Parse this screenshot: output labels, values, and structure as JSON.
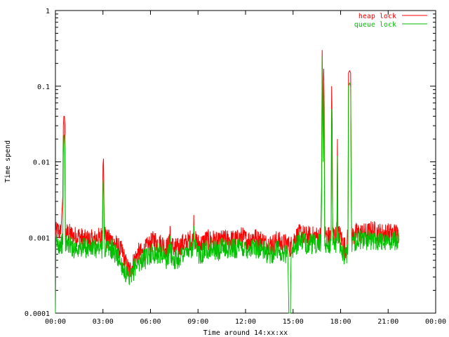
{
  "chart_data": {
    "type": "line",
    "title": "",
    "xlabel": "Time around 14:xx:xx",
    "ylabel": "Time spend",
    "x_unit": "minutes:seconds",
    "xlim": [
      0,
      1440
    ],
    "ylim": [
      0.0001,
      1
    ],
    "y_scale": "log",
    "grid": false,
    "legend_position": "top-right",
    "x_ticks": [
      {
        "value": 0,
        "label": "00:00"
      },
      {
        "value": 180,
        "label": "03:00"
      },
      {
        "value": 360,
        "label": "06:00"
      },
      {
        "value": 540,
        "label": "09:00"
      },
      {
        "value": 720,
        "label": "12:00"
      },
      {
        "value": 900,
        "label": "15:00"
      },
      {
        "value": 1080,
        "label": "18:00"
      },
      {
        "value": 1260,
        "label": "21:00"
      },
      {
        "value": 1440,
        "label": "00:00"
      }
    ],
    "y_ticks": [
      {
        "value": 0.0001,
        "label": "0.0001"
      },
      {
        "value": 0.001,
        "label": "0.001"
      },
      {
        "value": 0.01,
        "label": "0.01"
      },
      {
        "value": 0.1,
        "label": "0.1"
      },
      {
        "value": 1,
        "label": "1"
      }
    ],
    "series": [
      {
        "name": "heap lock",
        "color": "#ff0000",
        "points": [
          [
            0,
            0.0011
          ],
          [
            10,
            0.0012
          ],
          [
            20,
            0.0011
          ],
          [
            28,
            0.0035
          ],
          [
            30,
            0.03
          ],
          [
            32,
            0.04
          ],
          [
            34,
            0.04
          ],
          [
            36,
            0.03
          ],
          [
            38,
            0.0011
          ],
          [
            50,
            0.0011
          ],
          [
            70,
            0.001
          ],
          [
            90,
            0.001
          ],
          [
            110,
            0.0009
          ],
          [
            130,
            0.0009
          ],
          [
            150,
            0.0009
          ],
          [
            160,
            0.001
          ],
          [
            170,
            0.0009
          ],
          [
            178,
            0.0012
          ],
          [
            180,
            0.009
          ],
          [
            182,
            0.011
          ],
          [
            184,
            0.003
          ],
          [
            186,
            0.0012
          ],
          [
            195,
            0.0009
          ],
          [
            210,
            0.0009
          ],
          [
            225,
            0.0008
          ],
          [
            240,
            0.0007
          ],
          [
            255,
            0.0006
          ],
          [
            270,
            0.0004
          ],
          [
            280,
            0.00035
          ],
          [
            290,
            0.0004
          ],
          [
            300,
            0.0005
          ],
          [
            315,
            0.0006
          ],
          [
            330,
            0.0006
          ],
          [
            345,
            0.0007
          ],
          [
            360,
            0.0008
          ],
          [
            375,
            0.0009
          ],
          [
            390,
            0.0008
          ],
          [
            405,
            0.0008
          ],
          [
            420,
            0.0007
          ],
          [
            432,
            0.0008
          ],
          [
            434,
            0.0015
          ],
          [
            436,
            0.0008
          ],
          [
            450,
            0.0007
          ],
          [
            465,
            0.0007
          ],
          [
            480,
            0.0008
          ],
          [
            495,
            0.0008
          ],
          [
            510,
            0.0009
          ],
          [
            522,
            0.0009
          ],
          [
            524,
            0.0018
          ],
          [
            526,
            0.0009
          ],
          [
            540,
            0.0008
          ],
          [
            555,
            0.0008
          ],
          [
            570,
            0.0009
          ],
          [
            585,
            0.0009
          ],
          [
            600,
            0.0009
          ],
          [
            615,
            0.0008
          ],
          [
            630,
            0.0009
          ],
          [
            645,
            0.0009
          ],
          [
            660,
            0.0009
          ],
          [
            675,
            0.0009
          ],
          [
            690,
            0.0009
          ],
          [
            705,
            0.001
          ],
          [
            720,
            0.0009
          ],
          [
            735,
            0.0009
          ],
          [
            750,
            0.001
          ],
          [
            765,
            0.0009
          ],
          [
            780,
            0.0009
          ],
          [
            795,
            0.0008
          ],
          [
            810,
            0.0008
          ],
          [
            825,
            0.0008
          ],
          [
            840,
            0.0009
          ],
          [
            855,
            0.0008
          ],
          [
            870,
            0.0008
          ],
          [
            880,
            0.0008
          ],
          [
            890,
            0.0007
          ],
          [
            900,
            0.0009
          ],
          [
            915,
            0.001
          ],
          [
            930,
            0.0011
          ],
          [
            945,
            0.001
          ],
          [
            960,
            0.001
          ],
          [
            975,
            0.001
          ],
          [
            990,
            0.001
          ],
          [
            1000,
            0.001
          ],
          [
            1005,
            0.001
          ],
          [
            1008,
            0.005
          ],
          [
            1010,
            0.3
          ],
          [
            1012,
            0.12
          ],
          [
            1014,
            0.02
          ],
          [
            1016,
            0.17
          ],
          [
            1018,
            0.05
          ],
          [
            1020,
            0.0011
          ],
          [
            1030,
            0.001
          ],
          [
            1040,
            0.001
          ],
          [
            1044,
            0.0011
          ],
          [
            1046,
            0.1
          ],
          [
            1048,
            0.03
          ],
          [
            1050,
            0.0011
          ],
          [
            1060,
            0.001
          ],
          [
            1066,
            0.0012
          ],
          [
            1068,
            0.02
          ],
          [
            1070,
            0.0011
          ],
          [
            1080,
            0.001
          ],
          [
            1090,
            0.0008
          ],
          [
            1100,
            0.0007
          ],
          [
            1108,
            0.001
          ],
          [
            1110,
            0.15
          ],
          [
            1114,
            0.16
          ],
          [
            1118,
            0.15
          ],
          [
            1120,
            0.007
          ],
          [
            1122,
            0.001
          ],
          [
            1140,
            0.0011
          ],
          [
            1160,
            0.0011
          ],
          [
            1180,
            0.0011
          ],
          [
            1200,
            0.0012
          ],
          [
            1220,
            0.0011
          ],
          [
            1240,
            0.0011
          ],
          [
            1260,
            0.0011
          ],
          [
            1275,
            0.0011
          ],
          [
            1290,
            0.0011
          ],
          [
            1300,
            0.0011
          ]
        ]
      },
      {
        "name": "queue lock",
        "color": "#00c000",
        "points": [
          [
            0,
            0.0001
          ],
          [
            2,
            0.0008
          ],
          [
            10,
            0.0008
          ],
          [
            20,
            0.0008
          ],
          [
            28,
            0.0008
          ],
          [
            30,
            0.012
          ],
          [
            32,
            0.022
          ],
          [
            34,
            0.023
          ],
          [
            36,
            0.015
          ],
          [
            38,
            0.0008
          ],
          [
            50,
            0.0008
          ],
          [
            70,
            0.0007
          ],
          [
            90,
            0.0007
          ],
          [
            110,
            0.0007
          ],
          [
            130,
            0.0007
          ],
          [
            150,
            0.0007
          ],
          [
            160,
            0.0007
          ],
          [
            170,
            0.0007
          ],
          [
            178,
            0.0007
          ],
          [
            180,
            0.005
          ],
          [
            182,
            0.006
          ],
          [
            184,
            0.002
          ],
          [
            186,
            0.0007
          ],
          [
            195,
            0.0007
          ],
          [
            210,
            0.0007
          ],
          [
            225,
            0.0006
          ],
          [
            240,
            0.0005
          ],
          [
            255,
            0.0004
          ],
          [
            270,
            0.0003
          ],
          [
            280,
            0.00025
          ],
          [
            290,
            0.0003
          ],
          [
            300,
            0.0004
          ],
          [
            315,
            0.00045
          ],
          [
            330,
            0.0005
          ],
          [
            345,
            0.0005
          ],
          [
            360,
            0.0006
          ],
          [
            375,
            0.0006
          ],
          [
            390,
            0.0006
          ],
          [
            405,
            0.0006
          ],
          [
            420,
            0.0005
          ],
          [
            432,
            0.0006
          ],
          [
            434,
            0.0011
          ],
          [
            436,
            0.0006
          ],
          [
            450,
            0.0005
          ],
          [
            465,
            0.0005
          ],
          [
            480,
            0.0006
          ],
          [
            495,
            0.0006
          ],
          [
            510,
            0.0007
          ],
          [
            522,
            0.0007
          ],
          [
            524,
            0.0016
          ],
          [
            526,
            0.0007
          ],
          [
            540,
            0.0006
          ],
          [
            555,
            0.0006
          ],
          [
            570,
            0.0007
          ],
          [
            585,
            0.0007
          ],
          [
            600,
            0.0007
          ],
          [
            615,
            0.0006
          ],
          [
            630,
            0.0007
          ],
          [
            645,
            0.0007
          ],
          [
            660,
            0.0007
          ],
          [
            675,
            0.0007
          ],
          [
            690,
            0.0007
          ],
          [
            705,
            0.0007
          ],
          [
            720,
            0.0007
          ],
          [
            735,
            0.0007
          ],
          [
            750,
            0.0007
          ],
          [
            765,
            0.0007
          ],
          [
            780,
            0.0007
          ],
          [
            795,
            0.0006
          ],
          [
            810,
            0.0006
          ],
          [
            825,
            0.0006
          ],
          [
            840,
            0.0007
          ],
          [
            855,
            0.0006
          ],
          [
            870,
            0.0006
          ],
          [
            880,
            0.0006
          ],
          [
            884,
            0.0001
          ],
          [
            890,
            0.0001
          ],
          [
            892,
            0.0006
          ],
          [
            900,
            0.0007
          ],
          [
            915,
            0.0008
          ],
          [
            930,
            0.0009
          ],
          [
            945,
            0.0008
          ],
          [
            960,
            0.0008
          ],
          [
            975,
            0.0008
          ],
          [
            990,
            0.0008
          ],
          [
            1000,
            0.0008
          ],
          [
            1005,
            0.0008
          ],
          [
            1008,
            0.003
          ],
          [
            1010,
            0.25
          ],
          [
            1012,
            0.05
          ],
          [
            1014,
            0.01
          ],
          [
            1016,
            0.12
          ],
          [
            1018,
            0.02
          ],
          [
            1020,
            0.0008
          ],
          [
            1030,
            0.0008
          ],
          [
            1040,
            0.0008
          ],
          [
            1044,
            0.0009
          ],
          [
            1046,
            0.05
          ],
          [
            1048,
            0.015
          ],
          [
            1050,
            0.0009
          ],
          [
            1060,
            0.0008
          ],
          [
            1066,
            0.0009
          ],
          [
            1068,
            0.012
          ],
          [
            1070,
            0.0009
          ],
          [
            1080,
            0.0008
          ],
          [
            1090,
            0.0006
          ],
          [
            1100,
            0.0005
          ],
          [
            1108,
            0.0008
          ],
          [
            1110,
            0.1
          ],
          [
            1114,
            0.11
          ],
          [
            1118,
            0.1
          ],
          [
            1120,
            0.004
          ],
          [
            1122,
            0.0008
          ],
          [
            1140,
            0.0009
          ],
          [
            1160,
            0.0009
          ],
          [
            1180,
            0.0009
          ],
          [
            1200,
            0.0009
          ],
          [
            1220,
            0.0009
          ],
          [
            1240,
            0.0009
          ],
          [
            1260,
            0.0009
          ],
          [
            1275,
            0.0009
          ],
          [
            1290,
            0.0009
          ],
          [
            1300,
            0.0009
          ]
        ]
      }
    ]
  }
}
